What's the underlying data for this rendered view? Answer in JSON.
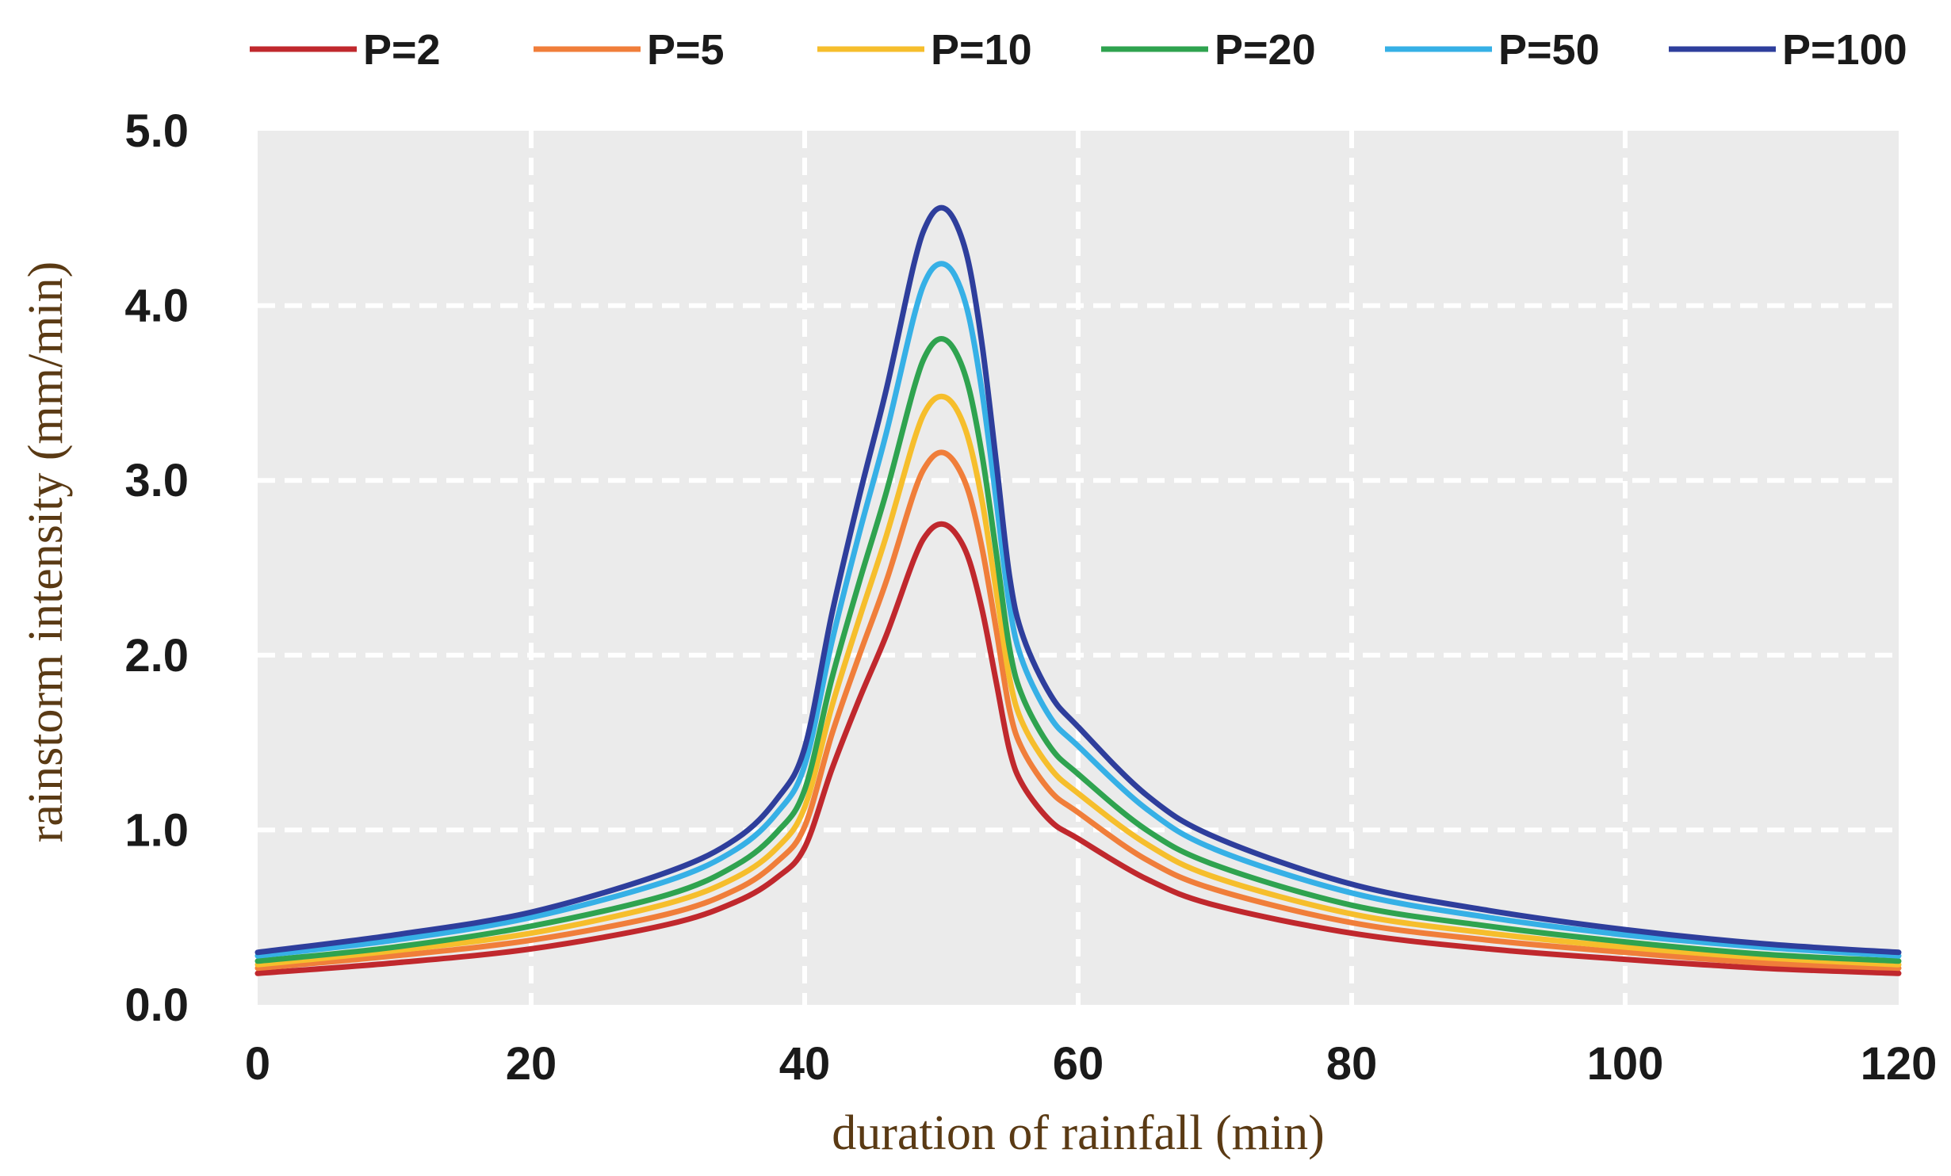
{
  "chart_data": {
    "type": "line",
    "title": "",
    "xlabel": "duration of rainfall (min)",
    "ylabel": "rainstorm intensity (mm/min)",
    "xlim": [
      0,
      120
    ],
    "ylim": [
      0,
      5
    ],
    "x_ticks": [
      0,
      20,
      40,
      60,
      80,
      100,
      120
    ],
    "x_tick_labels": [
      "0",
      "20",
      "40",
      "60",
      "80",
      "100",
      "120"
    ],
    "y_ticks": [
      0,
      1,
      2,
      3,
      4,
      5
    ],
    "y_tick_labels": [
      "0.0",
      "1.0",
      "2.0",
      "3.0",
      "4.0",
      "5.0"
    ],
    "grid": true,
    "grid_style": "dashed-white",
    "plot_background": "#ebebeb",
    "legend_position": "top",
    "x": [
      0,
      10,
      20,
      30,
      35,
      38,
      40,
      42,
      44,
      46,
      48,
      49,
      50,
      51,
      52,
      53,
      54,
      55,
      56,
      58,
      60,
      65,
      70,
      80,
      90,
      100,
      110,
      120
    ],
    "series": [
      {
        "name": "P=2",
        "color": "#c0282d",
        "values": [
          0.18,
          0.24,
          0.32,
          0.46,
          0.59,
          0.73,
          0.9,
          1.35,
          1.75,
          2.12,
          2.55,
          2.7,
          2.75,
          2.7,
          2.55,
          2.25,
          1.85,
          1.45,
          1.25,
          1.05,
          0.95,
          0.72,
          0.57,
          0.41,
          0.32,
          0.26,
          0.21,
          0.18
        ]
      },
      {
        "name": "P=5",
        "color": "#f07e3a",
        "values": [
          0.21,
          0.28,
          0.37,
          0.52,
          0.66,
          0.82,
          1.02,
          1.55,
          2.0,
          2.43,
          2.93,
          3.1,
          3.16,
          3.1,
          2.93,
          2.6,
          2.15,
          1.68,
          1.45,
          1.22,
          1.1,
          0.83,
          0.66,
          0.47,
          0.37,
          0.3,
          0.24,
          0.21
        ]
      },
      {
        "name": "P=10",
        "color": "#f6be2c",
        "values": [
          0.23,
          0.31,
          0.41,
          0.58,
          0.73,
          0.9,
          1.13,
          1.71,
          2.21,
          2.69,
          3.23,
          3.42,
          3.48,
          3.42,
          3.23,
          2.87,
          2.37,
          1.86,
          1.6,
          1.35,
          1.21,
          0.92,
          0.73,
          0.52,
          0.41,
          0.33,
          0.27,
          0.23
        ]
      },
      {
        "name": "P=20",
        "color": "#2fa34f",
        "values": [
          0.25,
          0.33,
          0.45,
          0.63,
          0.8,
          0.99,
          1.23,
          1.87,
          2.42,
          2.94,
          3.53,
          3.74,
          3.81,
          3.74,
          3.53,
          3.13,
          2.59,
          2.03,
          1.75,
          1.47,
          1.32,
          1.0,
          0.8,
          0.57,
          0.45,
          0.36,
          0.29,
          0.25
        ]
      },
      {
        "name": "P=50",
        "color": "#36b0e6",
        "values": [
          0.28,
          0.37,
          0.5,
          0.71,
          0.89,
          1.1,
          1.37,
          2.08,
          2.7,
          3.28,
          3.94,
          4.17,
          4.24,
          4.17,
          3.94,
          3.49,
          2.89,
          2.27,
          1.95,
          1.64,
          1.48,
          1.12,
          0.89,
          0.64,
          0.5,
          0.4,
          0.33,
          0.28
        ]
      },
      {
        "name": "P=100",
        "color": "#2e3e9c",
        "values": [
          0.3,
          0.4,
          0.53,
          0.76,
          0.95,
          1.18,
          1.47,
          2.24,
          2.91,
          3.53,
          4.24,
          4.48,
          4.56,
          4.48,
          4.24,
          3.76,
          3.11,
          2.44,
          2.1,
          1.77,
          1.59,
          1.2,
          0.96,
          0.69,
          0.54,
          0.43,
          0.35,
          0.3
        ]
      }
    ]
  }
}
